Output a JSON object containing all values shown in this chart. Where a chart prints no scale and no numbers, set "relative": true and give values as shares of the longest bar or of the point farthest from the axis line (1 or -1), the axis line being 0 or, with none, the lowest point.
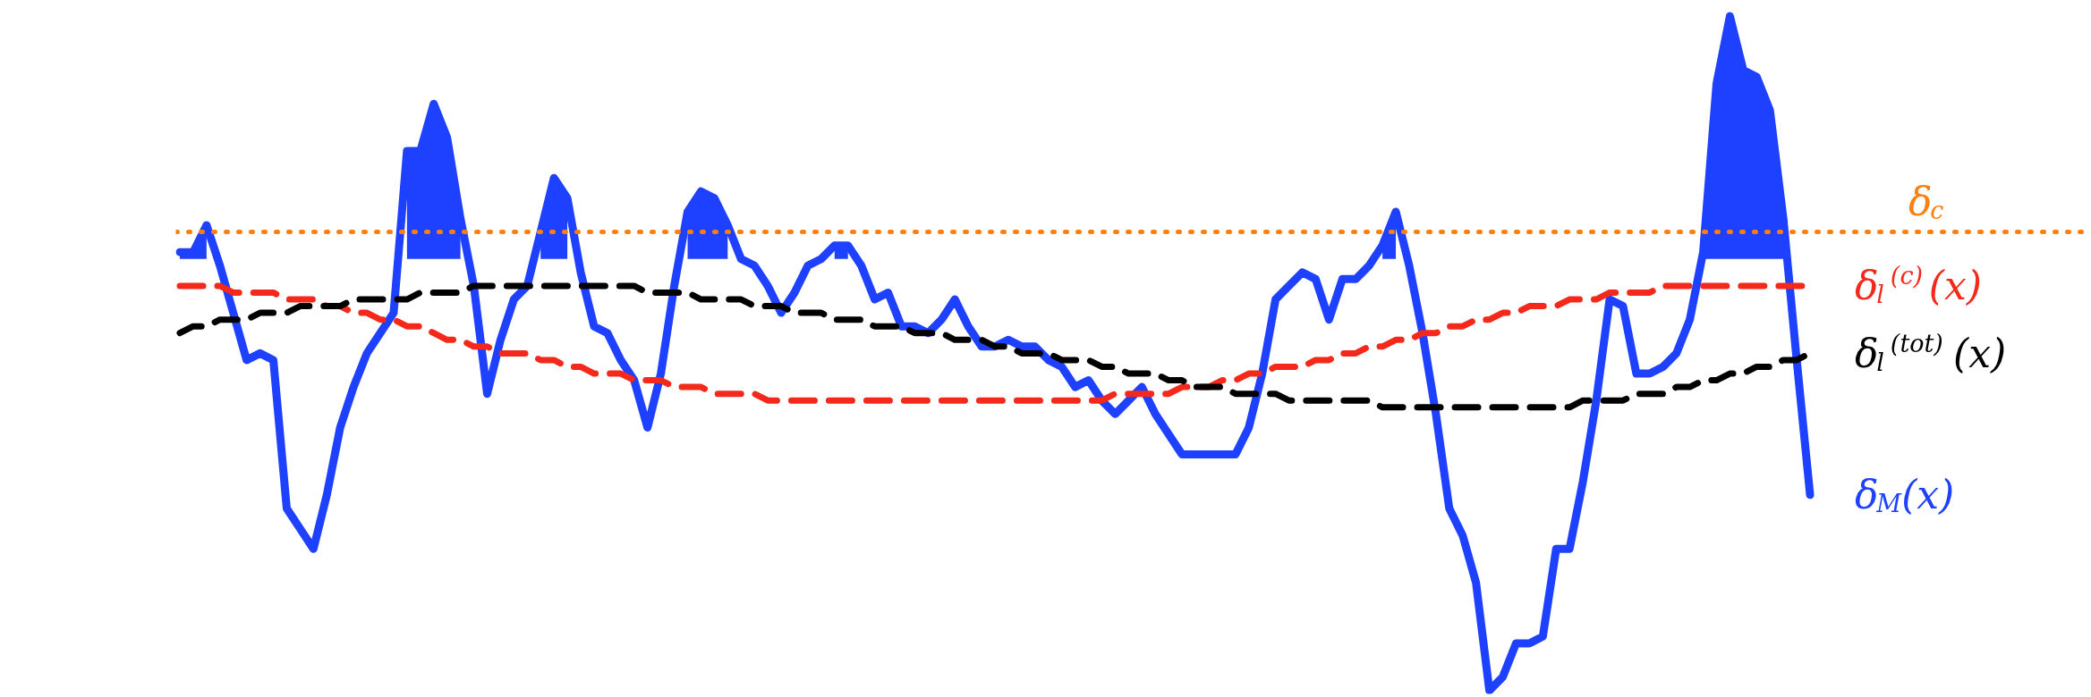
{
  "chart_data": {
    "type": "line",
    "relative": true,
    "categories": [
      null,
      null,
      null,
      null,
      null,
      null,
      null,
      null,
      null,
      null,
      null,
      null,
      null,
      null,
      null,
      null,
      null,
      null,
      null,
      null,
      null,
      null,
      null,
      null,
      null,
      null,
      null,
      null,
      null,
      null,
      null,
      null,
      null,
      null,
      null,
      null,
      null,
      null,
      null,
      null,
      null,
      null,
      null,
      null,
      null,
      null,
      null,
      null,
      null,
      null,
      null,
      null,
      null,
      null,
      null,
      null,
      null,
      null,
      null,
      null,
      null,
      null,
      null,
      null,
      null,
      null,
      null,
      null,
      null,
      null,
      null,
      null,
      null,
      null,
      null,
      null,
      null,
      null,
      null,
      null,
      null,
      null,
      null,
      null,
      null,
      null,
      null,
      null,
      null,
      null,
      null,
      null,
      null,
      null,
      null,
      null,
      null,
      null,
      null,
      null,
      null,
      null,
      null,
      null,
      null,
      null,
      null,
      null,
      null,
      null,
      null,
      null,
      null,
      null,
      null,
      null,
      null,
      null,
      null,
      null,
      null,
      null,
      null
    ],
    "series": [
      {
        "name": "δ$_{M}$(x)",
        "color": "#1e40ff",
        "line_style": "solid",
        "values": [
          0.65,
          0.65,
          0.69,
          0.63,
          0.56,
          0.49,
          0.5,
          0.49,
          0.27,
          0.24,
          0.21,
          0.29,
          0.39,
          0.45,
          0.5,
          0.53,
          0.56,
          0.8,
          0.8,
          0.87,
          0.82,
          0.7,
          0.6,
          0.44,
          0.52,
          0.58,
          0.6,
          0.68,
          0.76,
          0.73,
          0.62,
          0.54,
          0.53,
          0.49,
          0.46,
          0.39,
          0.47,
          0.6,
          0.71,
          0.74,
          0.73,
          0.69,
          0.64,
          0.63,
          0.6,
          0.56,
          0.59,
          0.63,
          0.64,
          0.66,
          0.66,
          0.63,
          0.58,
          0.59,
          0.54,
          0.54,
          0.53,
          0.55,
          0.58,
          0.54,
          0.51,
          0.51,
          0.52,
          0.51,
          0.51,
          0.49,
          0.48,
          0.45,
          0.46,
          0.43,
          0.41,
          0.43,
          0.45,
          0.41,
          0.38,
          0.35,
          0.35,
          0.35,
          0.35,
          0.35,
          0.39,
          0.47,
          0.58,
          0.6,
          0.62,
          0.61,
          0.55,
          0.61,
          0.61,
          0.63,
          0.66,
          0.71,
          0.63,
          0.53,
          0.41,
          0.27,
          0.23,
          0.16,
          0,
          0.02,
          0.07,
          0.07,
          0.08,
          0.21,
          0.21,
          0.31,
          0.43,
          0.58,
          0.57,
          0.47,
          0.47,
          0.48,
          0.5,
          0.55,
          0.65,
          0.9,
          1,
          0.92,
          0.91,
          0.86,
          0.7,
          0.49,
          0.29
        ],
        "lower": [
          0.64,
          0.64,
          0.64,
          null,
          null,
          null,
          null,
          null,
          null,
          null,
          null,
          null,
          null,
          null,
          null,
          null,
          null,
          0.64,
          0.64,
          0.64,
          0.64,
          0.64,
          null,
          null,
          null,
          null,
          null,
          0.64,
          0.64,
          0.64,
          null,
          null,
          null,
          null,
          null,
          null,
          null,
          null,
          0.64,
          0.64,
          0.64,
          0.64,
          null,
          null,
          null,
          null,
          null,
          null,
          null,
          0.64,
          0.64,
          null,
          null,
          null,
          null,
          null,
          null,
          null,
          null,
          null,
          null,
          null,
          null,
          null,
          null,
          null,
          null,
          null,
          null,
          null,
          null,
          null,
          null,
          null,
          null,
          null,
          null,
          null,
          null,
          null,
          null,
          null,
          null,
          null,
          null,
          null,
          null,
          null,
          null,
          null,
          0.64,
          0.64,
          null,
          null,
          null,
          null,
          null,
          null,
          null,
          null,
          null,
          null,
          null,
          null,
          null,
          null,
          null,
          null,
          null,
          null,
          null,
          null,
          null,
          null,
          0.64,
          0.64,
          0.64,
          0.64,
          0.64,
          0.64,
          0.64,
          null,
          null
        ],
        "upper": [
          0.65,
          0.65,
          0.69,
          null,
          null,
          null,
          null,
          null,
          null,
          null,
          null,
          null,
          null,
          null,
          null,
          null,
          null,
          0.8,
          0.8,
          0.87,
          0.82,
          0.7,
          null,
          null,
          null,
          null,
          null,
          0.68,
          0.76,
          0.73,
          null,
          null,
          null,
          null,
          null,
          null,
          null,
          null,
          0.71,
          0.74,
          0.73,
          0.69,
          null,
          null,
          null,
          null,
          null,
          null,
          null,
          0.66,
          0.66,
          null,
          null,
          null,
          null,
          null,
          null,
          null,
          null,
          null,
          null,
          null,
          null,
          null,
          null,
          null,
          null,
          null,
          null,
          null,
          null,
          null,
          null,
          null,
          null,
          null,
          null,
          null,
          null,
          null,
          null,
          null,
          null,
          null,
          null,
          null,
          null,
          null,
          null,
          null,
          0.66,
          0.71,
          null,
          null,
          null,
          null,
          null,
          null,
          null,
          null,
          null,
          null,
          null,
          null,
          null,
          null,
          null,
          null,
          null,
          null,
          null,
          null,
          null,
          null,
          0.65,
          0.9,
          1,
          0.92,
          0.91,
          0.86,
          0.7,
          null,
          null
        ]
      },
      {
        "name": "δ$_{l}$$^{(c)}$(x)",
        "color": "#f5291b",
        "line_style": "dashed",
        "values": [
          0.6,
          0.6,
          0.6,
          0.6,
          0.59,
          0.59,
          0.59,
          0.59,
          0.58,
          0.58,
          0.58,
          0.57,
          0.57,
          0.56,
          0.56,
          0.55,
          0.55,
          0.54,
          0.54,
          0.53,
          0.52,
          0.52,
          0.51,
          0.51,
          0.5,
          0.5,
          0.5,
          0.49,
          0.49,
          0.48,
          0.48,
          0.47,
          0.47,
          0.47,
          0.46,
          0.46,
          0.46,
          0.45,
          0.45,
          0.45,
          0.44,
          0.44,
          0.44,
          0.44,
          0.43,
          0.43,
          0.43,
          0.43,
          0.43,
          0.43,
          0.43,
          0.43,
          0.43,
          0.43,
          0.43,
          0.43,
          0.43,
          0.43,
          0.43,
          0.43,
          0.43,
          0.43,
          0.43,
          0.43,
          0.43,
          0.43,
          0.43,
          0.43,
          0.43,
          0.43,
          0.44,
          0.44,
          0.44,
          0.44,
          0.44,
          0.45,
          0.45,
          0.45,
          0.46,
          0.46,
          0.47,
          0.47,
          0.48,
          0.48,
          0.48,
          0.49,
          0.49,
          0.5,
          0.5,
          0.51,
          0.51,
          0.52,
          0.52,
          0.53,
          0.53,
          0.54,
          0.54,
          0.55,
          0.55,
          0.56,
          0.56,
          0.57,
          0.57,
          0.57,
          0.58,
          0.58,
          0.58,
          0.59,
          0.59,
          0.59,
          0.59,
          0.6,
          0.6,
          0.6,
          0.6,
          0.6,
          0.6,
          0.6,
          0.6,
          0.6,
          0.6,
          0.6,
          0.6
        ]
      },
      {
        "name": "δ$_{l}$$^{(tot)}$(x)",
        "color": "#000000",
        "line_style": "dashed",
        "values": [
          0.53,
          0.54,
          0.54,
          0.55,
          0.55,
          0.55,
          0.56,
          0.56,
          0.56,
          0.57,
          0.57,
          0.57,
          0.57,
          0.58,
          0.58,
          0.58,
          0.58,
          0.58,
          0.59,
          0.59,
          0.59,
          0.59,
          0.6,
          0.6,
          0.6,
          0.6,
          0.6,
          0.6,
          0.6,
          0.6,
          0.6,
          0.6,
          0.6,
          0.6,
          0.6,
          0.59,
          0.59,
          0.59,
          0.59,
          0.58,
          0.58,
          0.58,
          0.58,
          0.57,
          0.57,
          0.57,
          0.56,
          0.56,
          0.56,
          0.55,
          0.55,
          0.55,
          0.54,
          0.54,
          0.54,
          0.53,
          0.53,
          0.53,
          0.52,
          0.52,
          0.52,
          0.51,
          0.51,
          0.5,
          0.5,
          0.5,
          0.49,
          0.49,
          0.49,
          0.48,
          0.48,
          0.47,
          0.47,
          0.47,
          0.46,
          0.46,
          0.45,
          0.45,
          0.45,
          0.44,
          0.44,
          0.44,
          0.44,
          0.43,
          0.43,
          0.43,
          0.43,
          0.43,
          0.43,
          0.43,
          0.42,
          0.42,
          0.42,
          0.42,
          0.42,
          0.42,
          0.42,
          0.42,
          0.42,
          0.42,
          0.42,
          0.42,
          0.42,
          0.42,
          0.42,
          0.43,
          0.43,
          0.43,
          0.43,
          0.44,
          0.44,
          0.44,
          0.45,
          0.45,
          0.46,
          0.46,
          0.47,
          0.47,
          0.48,
          0.48,
          0.49,
          0.49,
          0.5
        ]
      }
    ],
    "ref_lines": [
      {
        "axis": "y",
        "value": 0.68,
        "label": "δ$_{c}$",
        "color": "#ff7f0e",
        "line_style": "dotted"
      }
    ]
  }
}
